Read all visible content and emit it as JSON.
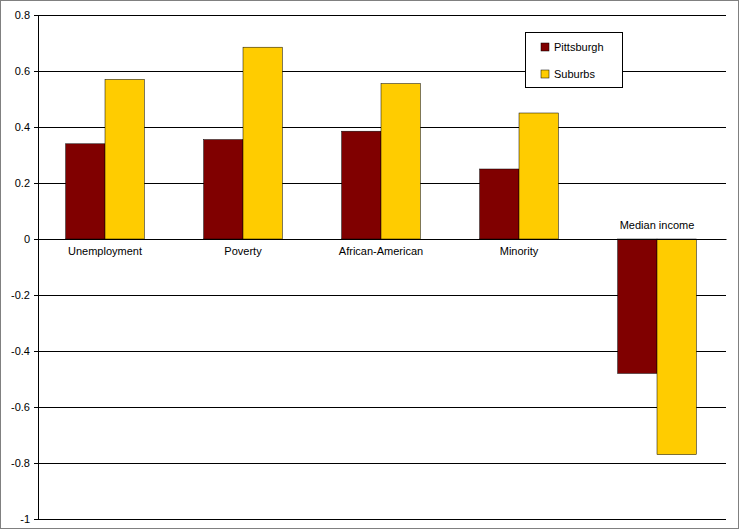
{
  "chart_data": {
    "type": "bar",
    "categories": [
      "Unemployment",
      "Poverty",
      "African-American",
      "Minority",
      "Median income"
    ],
    "series": [
      {
        "name": "Pittsburgh",
        "color": "#800000",
        "values": [
          0.34,
          0.355,
          0.385,
          0.25,
          -0.48
        ]
      },
      {
        "name": "Suburbs",
        "color": "#ffcc00",
        "values": [
          0.57,
          0.685,
          0.555,
          0.45,
          -0.77
        ]
      }
    ],
    "ylim": [
      -1,
      0.8
    ],
    "yticks": [
      -1,
      -0.8,
      -0.6,
      -0.4,
      -0.2,
      0,
      0.2,
      0.4,
      0.6,
      0.8
    ],
    "grid": true,
    "legend": "top-right"
  }
}
